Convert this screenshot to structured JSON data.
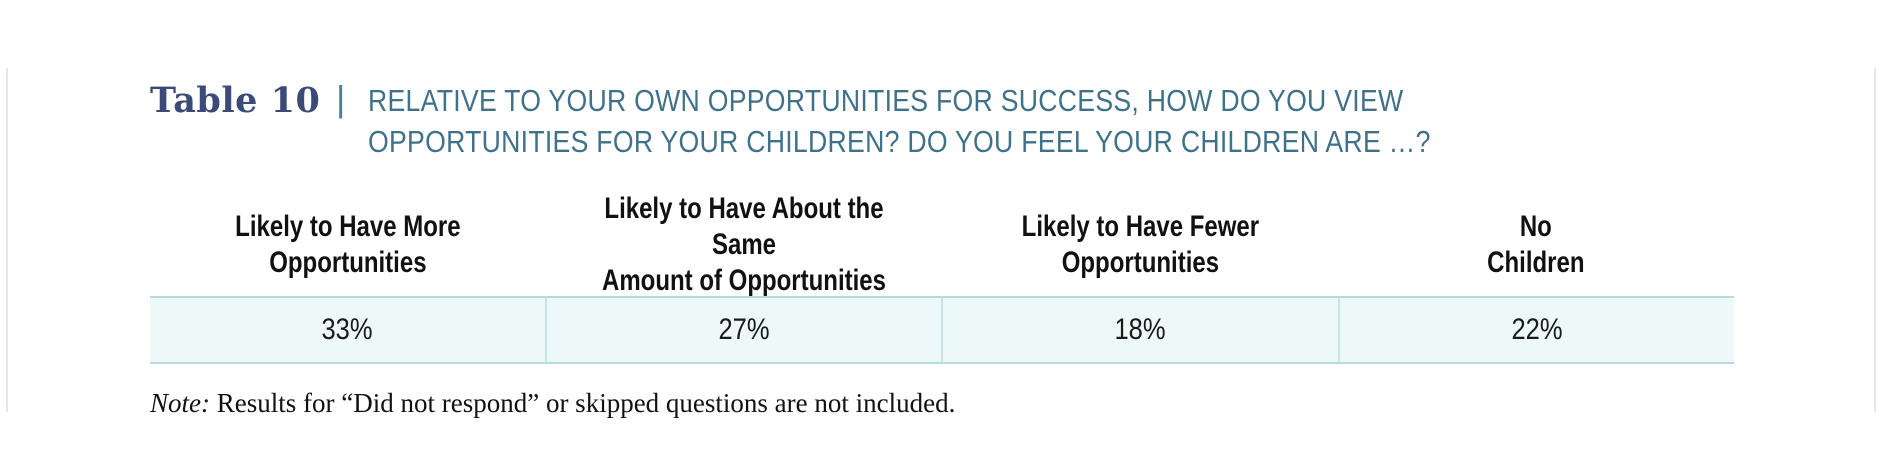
{
  "table": {
    "label": "Table 10",
    "separator": "|",
    "title": "RELATIVE TO YOUR OWN OPPORTUNITIES FOR SUCCESS, HOW DO YOU VIEW OPPORTUNITIES FOR YOUR CHILDREN? DO YOU FEEL YOUR CHILDREN ARE …?",
    "columns": [
      "Likely to Have More\nOpportunities",
      "Likely to Have About the Same\nAmount of Opportunities",
      "Likely to Have Fewer\nOpportunities",
      "No\nChildren"
    ],
    "values": [
      "33%",
      "27%",
      "18%",
      "22%"
    ]
  },
  "note": {
    "label": "Note:",
    "text": " Results for “Did not respond” or skipped questions are not included."
  },
  "colors": {
    "label": "#3b4a77",
    "title": "#3f7189",
    "row_fill": "#edf8f8",
    "rule": "#b7dadd"
  }
}
